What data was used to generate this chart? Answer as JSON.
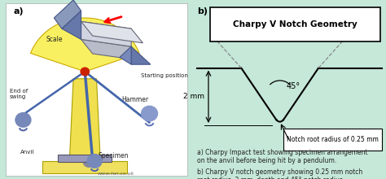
{
  "bg_color": "#c5e8d8",
  "title": "Charpy V Notch Geometry",
  "label_a": "a)",
  "label_b": "b)",
  "dim_label": "2 mm",
  "angle_label": "45°",
  "notch_label": "Notch root radius of 0.25 mm",
  "caption_a": "a) Charpy Impact test showing specimen arrangement\non the anvil before being hit by a pendulum.",
  "caption_b": "b) Charpy V notch geometry showing 0.25 mm notch\nroot radius, 2 mm, depth and 45° notch radius.",
  "watermark": "www.twi.co.uk"
}
